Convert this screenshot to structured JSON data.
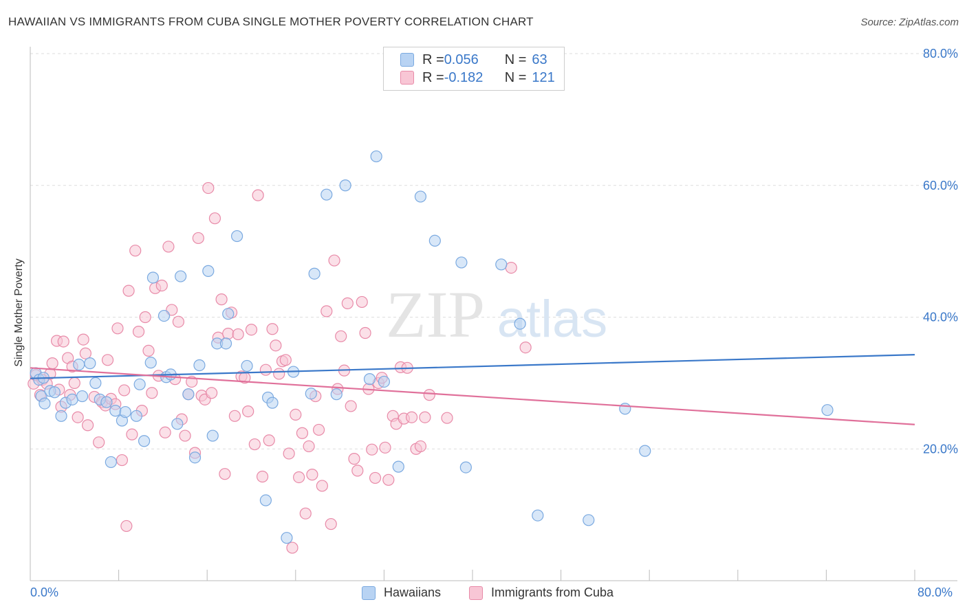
{
  "header": {
    "title": "HAWAIIAN VS IMMIGRANTS FROM CUBA SINGLE MOTHER POVERTY CORRELATION CHART",
    "source": "Source: ZipAtlas.com"
  },
  "watermark": {
    "zip": "ZIP",
    "atlas": "atlas"
  },
  "legend_top": {
    "rows": [
      {
        "r_key": "R = ",
        "r_value": "0.056",
        "n_key": "N = ",
        "n_value": "63",
        "color": "#7aa9e0",
        "fill": "#b8d3f3"
      },
      {
        "r_key": "R = ",
        "r_value": "-0.182",
        "n_key": "N = ",
        "n_value": "121",
        "color": "#e88aa8",
        "fill": "#f8c6d5"
      }
    ]
  },
  "legend_bottom": {
    "items": [
      {
        "label": "Hawaiians",
        "color": "#7aa9e0",
        "fill": "#b8d3f3"
      },
      {
        "label": "Immigrants from Cuba",
        "color": "#e88aa8",
        "fill": "#f8c6d5"
      }
    ]
  },
  "x_axis_labels": {
    "min": "0.0%",
    "max": "80.0%"
  },
  "chart_data": {
    "type": "scatter",
    "title": "HAWAIIAN VS IMMIGRANTS FROM CUBA SINGLE MOTHER POVERTY CORRELATION CHART",
    "xlabel": "",
    "ylabel": "Single Mother Poverty",
    "xlim": [
      0,
      80
    ],
    "ylim": [
      0,
      80
    ],
    "ytick_labels": [
      "20.0%",
      "40.0%",
      "60.0%",
      "80.0%"
    ],
    "ytick_values": [
      20,
      40,
      60,
      80
    ],
    "grid": true,
    "legend_position": "top-center",
    "colors": {
      "hawaiians": "#3a78c9",
      "cuba": "#e0709a"
    },
    "series": [
      {
        "name": "Hawaiians",
        "r": 0.056,
        "n": 63,
        "trend": {
          "x": [
            0,
            80
          ],
          "y": [
            30.7,
            34.3
          ]
        },
        "points": [
          [
            0.5,
            31.5
          ],
          [
            0.8,
            30.5
          ],
          [
            1.0,
            28.0
          ],
          [
            1.2,
            30.8
          ],
          [
            1.3,
            26.9
          ],
          [
            1.8,
            28.8
          ],
          [
            2.2,
            28.6
          ],
          [
            2.8,
            25.0
          ],
          [
            3.2,
            27.0
          ],
          [
            3.8,
            27.5
          ],
          [
            4.4,
            32.8
          ],
          [
            4.7,
            28.0
          ],
          [
            5.4,
            33.0
          ],
          [
            5.9,
            30.0
          ],
          [
            6.3,
            27.5
          ],
          [
            6.9,
            27.1
          ],
          [
            7.3,
            18.0
          ],
          [
            7.7,
            25.8
          ],
          [
            8.3,
            24.3
          ],
          [
            8.6,
            25.6
          ],
          [
            9.6,
            25.0
          ],
          [
            9.9,
            29.8
          ],
          [
            10.3,
            21.2
          ],
          [
            10.9,
            33.1
          ],
          [
            11.1,
            46.0
          ],
          [
            12.1,
            40.2
          ],
          [
            12.3,
            30.9
          ],
          [
            12.7,
            31.3
          ],
          [
            13.3,
            23.8
          ],
          [
            13.6,
            46.2
          ],
          [
            14.3,
            28.3
          ],
          [
            14.9,
            18.7
          ],
          [
            15.3,
            32.7
          ],
          [
            16.1,
            47.0
          ],
          [
            16.5,
            22.0
          ],
          [
            16.9,
            36.0
          ],
          [
            17.7,
            36.0
          ],
          [
            17.9,
            40.5
          ],
          [
            18.7,
            52.3
          ],
          [
            19.6,
            32.6
          ],
          [
            21.5,
            27.8
          ],
          [
            21.9,
            27.0
          ],
          [
            21.3,
            12.2
          ],
          [
            23.2,
            6.5
          ],
          [
            23.8,
            31.7
          ],
          [
            25.4,
            28.4
          ],
          [
            25.7,
            46.6
          ],
          [
            26.8,
            58.6
          ],
          [
            27.7,
            28.3
          ],
          [
            28.5,
            60.0
          ],
          [
            30.7,
            30.6
          ],
          [
            31.3,
            64.4
          ],
          [
            32.0,
            30.2
          ],
          [
            33.3,
            17.3
          ],
          [
            35.3,
            58.3
          ],
          [
            36.6,
            51.6
          ],
          [
            39.0,
            48.3
          ],
          [
            39.4,
            17.2
          ],
          [
            42.6,
            48.0
          ],
          [
            44.3,
            39.0
          ],
          [
            45.9,
            9.9
          ],
          [
            50.5,
            9.2
          ],
          [
            53.8,
            26.1
          ],
          [
            55.6,
            19.7
          ],
          [
            72.1,
            25.9
          ]
        ]
      },
      {
        "name": "Immigrants from Cuba",
        "r": -0.182,
        "n": 121,
        "trend": {
          "x": [
            0,
            80
          ],
          "y": [
            32.3,
            23.7
          ]
        },
        "points": [
          [
            0.3,
            29.9
          ],
          [
            0.5,
            31.2
          ],
          [
            0.9,
            28.2
          ],
          [
            1.1,
            30.5
          ],
          [
            1.5,
            29.9
          ],
          [
            1.8,
            31.4
          ],
          [
            2.0,
            33.0
          ],
          [
            2.4,
            36.4
          ],
          [
            2.6,
            29.0
          ],
          [
            2.8,
            26.4
          ],
          [
            3.0,
            36.3
          ],
          [
            3.4,
            33.8
          ],
          [
            3.6,
            28.2
          ],
          [
            3.8,
            32.5
          ],
          [
            4.0,
            30.0
          ],
          [
            4.3,
            24.8
          ],
          [
            4.8,
            36.6
          ],
          [
            5.0,
            34.5
          ],
          [
            5.2,
            23.6
          ],
          [
            5.8,
            27.9
          ],
          [
            6.2,
            21.0
          ],
          [
            6.5,
            27.1
          ],
          [
            6.8,
            26.6
          ],
          [
            7.0,
            33.5
          ],
          [
            7.3,
            27.6
          ],
          [
            7.7,
            26.8
          ],
          [
            7.9,
            38.3
          ],
          [
            8.3,
            18.3
          ],
          [
            8.5,
            28.9
          ],
          [
            8.7,
            8.3
          ],
          [
            8.9,
            44.0
          ],
          [
            9.2,
            22.2
          ],
          [
            9.5,
            50.1
          ],
          [
            9.8,
            37.8
          ],
          [
            10.1,
            25.8
          ],
          [
            10.4,
            40.0
          ],
          [
            10.7,
            34.9
          ],
          [
            11.0,
            28.5
          ],
          [
            11.3,
            44.4
          ],
          [
            11.6,
            31.1
          ],
          [
            11.9,
            44.8
          ],
          [
            12.2,
            22.5
          ],
          [
            12.5,
            50.7
          ],
          [
            12.8,
            41.1
          ],
          [
            13.1,
            30.6
          ],
          [
            13.4,
            39.3
          ],
          [
            13.7,
            24.5
          ],
          [
            14.0,
            22.0
          ],
          [
            14.3,
            28.3
          ],
          [
            14.6,
            30.2
          ],
          [
            14.9,
            19.4
          ],
          [
            15.2,
            52.0
          ],
          [
            15.5,
            28.1
          ],
          [
            15.8,
            27.5
          ],
          [
            16.1,
            59.6
          ],
          [
            16.4,
            28.5
          ],
          [
            16.7,
            55.0
          ],
          [
            17.0,
            36.9
          ],
          [
            17.3,
            42.7
          ],
          [
            17.6,
            16.2
          ],
          [
            17.9,
            37.5
          ],
          [
            18.2,
            40.7
          ],
          [
            18.5,
            25.0
          ],
          [
            18.8,
            37.4
          ],
          [
            19.1,
            31.0
          ],
          [
            19.4,
            30.8
          ],
          [
            19.7,
            25.7
          ],
          [
            20.0,
            38.1
          ],
          [
            20.3,
            20.7
          ],
          [
            20.6,
            58.5
          ],
          [
            21.0,
            15.8
          ],
          [
            21.3,
            32.0
          ],
          [
            21.6,
            21.3
          ],
          [
            21.9,
            38.2
          ],
          [
            22.2,
            35.7
          ],
          [
            22.5,
            31.4
          ],
          [
            22.8,
            33.3
          ],
          [
            23.1,
            33.5
          ],
          [
            23.4,
            19.3
          ],
          [
            23.7,
            5.0
          ],
          [
            24.0,
            25.2
          ],
          [
            24.3,
            15.7
          ],
          [
            24.6,
            22.4
          ],
          [
            24.9,
            10.2
          ],
          [
            25.2,
            20.4
          ],
          [
            25.5,
            16.1
          ],
          [
            25.8,
            28.0
          ],
          [
            26.1,
            22.9
          ],
          [
            26.4,
            14.4
          ],
          [
            26.8,
            40.9
          ],
          [
            27.2,
            8.6
          ],
          [
            27.5,
            48.6
          ],
          [
            27.8,
            29.1
          ],
          [
            28.1,
            37.1
          ],
          [
            28.4,
            31.9
          ],
          [
            28.7,
            42.1
          ],
          [
            29.0,
            26.5
          ],
          [
            29.3,
            18.5
          ],
          [
            29.6,
            16.7
          ],
          [
            30.0,
            42.3
          ],
          [
            30.3,
            37.6
          ],
          [
            30.6,
            29.1
          ],
          [
            30.9,
            19.9
          ],
          [
            31.2,
            15.6
          ],
          [
            31.5,
            30.0
          ],
          [
            31.8,
            30.8
          ],
          [
            32.1,
            20.2
          ],
          [
            32.4,
            15.3
          ],
          [
            32.8,
            25.0
          ],
          [
            33.1,
            23.8
          ],
          [
            33.5,
            32.4
          ],
          [
            33.8,
            24.6
          ],
          [
            34.1,
            32.3
          ],
          [
            34.5,
            24.8
          ],
          [
            34.9,
            20.0
          ],
          [
            35.3,
            20.4
          ],
          [
            35.7,
            24.8
          ],
          [
            36.1,
            28.2
          ],
          [
            37.7,
            24.7
          ],
          [
            43.5,
            47.5
          ],
          [
            44.8,
            35.4
          ]
        ]
      }
    ]
  }
}
